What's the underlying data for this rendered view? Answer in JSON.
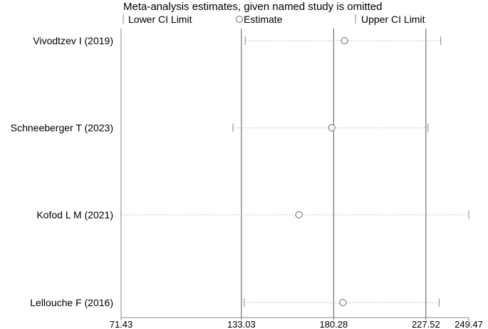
{
  "chart_data": {
    "type": "scatter",
    "title": "Meta-analysis estimates, given named study is omitted",
    "legend": {
      "position": "top",
      "items": [
        {
          "label": "Lower CI Limit",
          "marker": "vertical-tick"
        },
        {
          "label": "Estimate",
          "marker": "open-circle"
        },
        {
          "label": "Upper CI Limit",
          "marker": "vertical-tick"
        }
      ]
    },
    "x_range": [
      71.43,
      249.47
    ],
    "x_ticks": [
      71.43,
      133.03,
      180.28,
      227.52,
      249.47
    ],
    "x_tick_labels": [
      "71.43",
      "133.03",
      "180.28",
      "227.52",
      "249.47"
    ],
    "reference_lines": [
      133.03,
      180.28,
      227.52
    ],
    "studies": [
      {
        "label": "Vivodtzev I (2019)",
        "lower": 135.0,
        "estimate": 185.8,
        "upper": 235.1
      },
      {
        "label": "Schneeberger T (2023)",
        "lower": 128.7,
        "estimate": 179.3,
        "upper": 228.6
      },
      {
        "label": "Kofod L M (2021)",
        "lower": 71.4,
        "estimate": 162.5,
        "upper": 249.47
      },
      {
        "label": "Lellouche F (2016)",
        "lower": 134.5,
        "estimate": 185.0,
        "upper": 234.3
      }
    ],
    "grid": false
  }
}
